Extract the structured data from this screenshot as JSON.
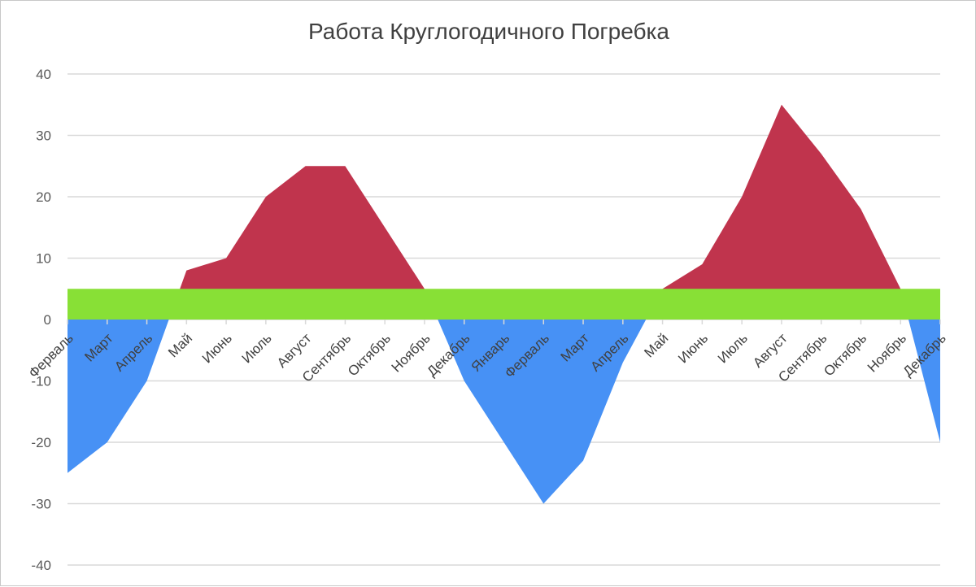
{
  "chart_data": {
    "type": "area",
    "title": "Работа Круглогодичного Погребка",
    "xlabel": "",
    "ylabel": "",
    "ylim": [
      -40,
      40
    ],
    "yticks": [
      40,
      30,
      20,
      10,
      0,
      -10,
      -20,
      -30,
      -40
    ],
    "grid": true,
    "categories": [
      "Ферваль",
      "Март",
      "Апрель",
      "Май",
      "Июнь",
      "Июль",
      "Август",
      "Сентябрь",
      "Октябрь",
      "Ноябрь",
      "Декабрь",
      "Январь",
      "Ферваль",
      "Март",
      "Апрель",
      "Май",
      "Июнь",
      "Июль",
      "Август",
      "Сентябрь",
      "Октябрь",
      "Ноябрь",
      "Декабрь"
    ],
    "series": [
      {
        "color": "#c0344d",
        "values": [
          -25,
          -20,
          -10,
          8,
          10,
          20,
          25,
          25,
          15,
          5,
          -10,
          -20,
          -30,
          -23,
          -7,
          5,
          9,
          20,
          35,
          27,
          18,
          5,
          -20
        ]
      }
    ],
    "band": {
      "from": 0,
      "to": 5,
      "color": "#88e036"
    },
    "positive_color": "#c0344d",
    "negative_color": "#4791f5"
  }
}
